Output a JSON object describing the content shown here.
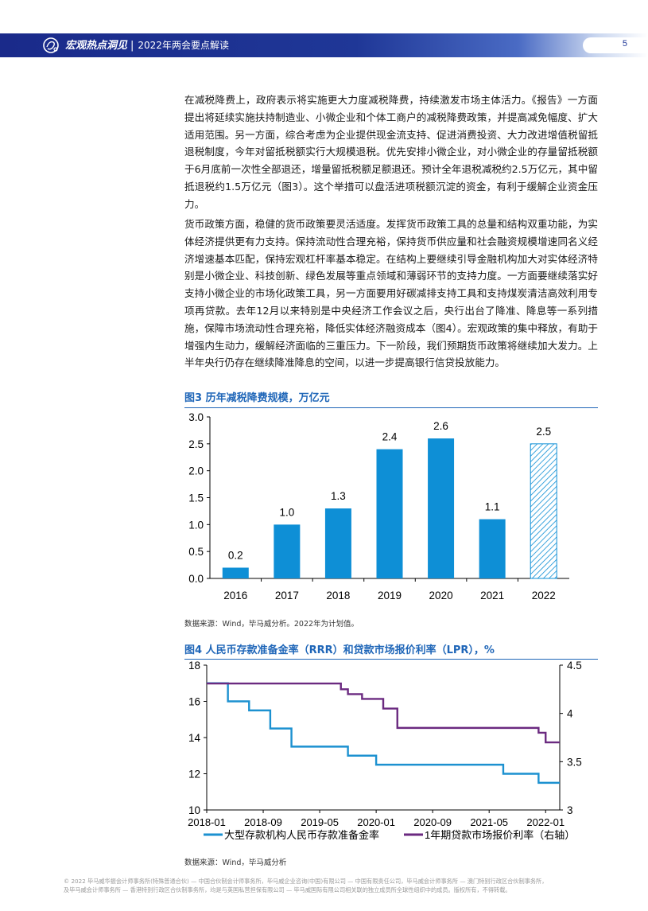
{
  "header": {
    "title": "宏观热点洞见",
    "separator": "|",
    "subtitle": "2022年两会要点解读",
    "page_number": "5"
  },
  "paragraphs": {
    "p1": "在减税降费上，政府表示将实施更大力度减税降费，持续激发市场主体活力。《报告》一方面提出将延续实施扶持制造业、小微企业和个体工商户的减税降费政策，并提高减免幅度、扩大适用范围。另一方面，综合考虑为企业提供现金流支持、促进消费投资、大力改进增值税留抵退税制度，今年对留抵税额实行大规模退税。优先安排小微企业，对小微企业的存量留抵税额于6月底前一次性全部退还，增量留抵税额足额退还。预计全年退税减税约2.5万亿元，其中留抵退税约1.5万亿元（图3）。这个举措可以盘活进项税额沉淀的资金，有利于缓解企业资金压力。",
    "p2": "货币政策方面，稳健的货币政策要灵活适度。发挥货币政策工具的总量和结构双重功能，为实体经济提供更有力支持。保持流动性合理充裕，保持货币供应量和社会融资规模增速同名义经济增速基本匹配，保持宏观杠杆率基本稳定。在结构上要继续引导金融机构加大对实体经济特别是小微企业、科技创新、绿色发展等重点领域和薄弱环节的支持力度。一方面要继续落实好支持小微企业的市场化政策工具，另一方面要用好碳减排支持工具和支持煤炭清洁高效利用专项再贷款。去年12月以来特别是中央经济工作会议之后，央行出台了降准、降息等一系列措施，保障市场流动性合理充裕，降低实体经济融资成本（图4）。宏观政策的集中释放，有助于增强内生动力，缓解经济面临的三重压力。下一阶段，我们预期货币政策将继续加大发力。上半年央行仍存在继续降准降息的空间，以进一步提高银行信贷投放能力。"
  },
  "fig3": {
    "title": "图3 历年减税降费规模，万亿元",
    "source": "数据来源：Wind，毕马威分析。2022年为计划值。"
  },
  "fig4": {
    "title": "图4 人民币存款准备金率（RRR）和贷款市场报价利率（LPR），%",
    "source": "数据来源：Wind，毕马威分析"
  },
  "chart_data": [
    {
      "type": "bar",
      "title": "图3 历年减税降费规模，万亿元",
      "categories": [
        "2016",
        "2017",
        "2018",
        "2019",
        "2020",
        "2021",
        "2022"
      ],
      "values": [
        0.2,
        1.0,
        1.3,
        2.4,
        2.6,
        1.1,
        2.5
      ],
      "data_labels": [
        "0.2",
        "1.0",
        "1.3",
        "2.4",
        "2.6",
        "1.1",
        "2.5"
      ],
      "ylim": [
        0,
        3.0
      ],
      "yticks": [
        "0.0",
        "0.5",
        "1.0",
        "1.5",
        "2.0",
        "2.5",
        "3.0"
      ],
      "hatched_category": "2022",
      "colors": {
        "bar": "#0e8fd6",
        "hatched_bar": "#9ad3f0"
      },
      "grid": false
    },
    {
      "type": "line",
      "title": "图4 人民币存款准备金率（RRR）和贷款市场报价利率（LPR），%",
      "xlim": [
        "2018-01",
        "2022-03"
      ],
      "xticks": [
        "2018-01",
        "2018-09",
        "2019-05",
        "2020-01",
        "2020-09",
        "2021-05",
        "2022-01"
      ],
      "ylim_left": [
        10,
        18
      ],
      "yticks_left": [
        "10",
        "12",
        "14",
        "16",
        "18"
      ],
      "ylim_right": [
        3,
        4.5
      ],
      "yticks_right": [
        "3",
        "3.5",
        "4",
        "4.5"
      ],
      "legend_position": "bottom",
      "grid": false,
      "series": [
        {
          "name": "大型存款机构人民币存款准备金率",
          "axis": "left",
          "color": "#1c91d0",
          "steps": [
            [
              "2018-01",
              17.0
            ],
            [
              "2018-04",
              16.0
            ],
            [
              "2018-07",
              15.5
            ],
            [
              "2018-10",
              14.5
            ],
            [
              "2019-01",
              13.5
            ],
            [
              "2019-09",
              13.0
            ],
            [
              "2020-01",
              12.5
            ],
            [
              "2021-07",
              12.0
            ],
            [
              "2021-12",
              11.5
            ],
            [
              "2022-03",
              11.5
            ]
          ]
        },
        {
          "name": "1年期贷款市场报价利率（右轴）",
          "axis": "right",
          "color": "#6b2a80",
          "steps": [
            [
              "2018-01",
              4.31
            ],
            [
              "2019-08",
              4.25
            ],
            [
              "2019-09",
              4.2
            ],
            [
              "2019-11",
              4.15
            ],
            [
              "2020-02",
              4.05
            ],
            [
              "2020-04",
              3.85
            ],
            [
              "2021-12",
              3.8
            ],
            [
              "2022-01",
              3.7
            ],
            [
              "2022-03",
              3.7
            ]
          ]
        }
      ]
    }
  ],
  "footer": {
    "line1": "© 2022 毕马威华振会计师事务所(特殊普通合伙) — 中国合伙制会计师事务所，毕马威企业咨询(中国)有限公司 — 中国有限责任公司，毕马威会计师事务所 — 澳门特别行政区合伙制事务所，",
    "line2": "及毕马威会计师事务所 — 香港特别行政区合伙制事务所，均是与英国私营担保有限公司 — 毕马威国际有限公司相关联的独立成员所全球性组织中的成员。版权所有，不得转载。"
  }
}
